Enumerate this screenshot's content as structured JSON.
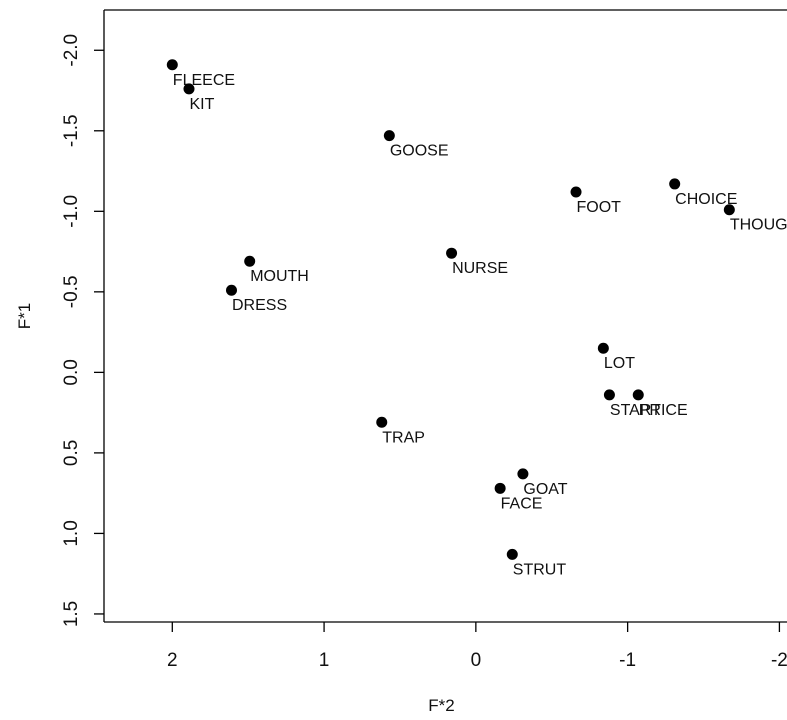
{
  "chart_data": {
    "type": "scatter",
    "title": "",
    "xlabel": "F*2",
    "ylabel": "F*1",
    "xlim": [
      2.45,
      -2.05
    ],
    "ylim": [
      -2.25,
      1.55
    ],
    "x_reversed": true,
    "y_reversed": true,
    "x_ticks": [
      2,
      1,
      0,
      -1,
      -2
    ],
    "x_tick_labels": [
      "2",
      "1",
      "0",
      "-1",
      "-2"
    ],
    "y_ticks": [
      -2.0,
      -1.5,
      -1.0,
      -0.5,
      0.0,
      0.5,
      1.0,
      1.5
    ],
    "y_tick_labels": [
      "-2.0",
      "-1.5",
      "-1.0",
      "-0.5",
      "0.0",
      "0.5",
      "1.0",
      "1.5"
    ],
    "grid": false,
    "legend": "none",
    "point_color": "#000000",
    "points": [
      {
        "label": "FLEECE",
        "x": 2.0,
        "y": -1.91
      },
      {
        "label": "KIT",
        "x": 1.89,
        "y": -1.76
      },
      {
        "label": "GOOSE",
        "x": 0.57,
        "y": -1.47
      },
      {
        "label": "FOOT",
        "x": -0.66,
        "y": -1.12
      },
      {
        "label": "CHOICE",
        "x": -1.31,
        "y": -1.17
      },
      {
        "label": "THOUG",
        "x": -1.67,
        "y": -1.01
      },
      {
        "label": "MOUTH",
        "x": 1.49,
        "y": -0.69
      },
      {
        "label": "DRESS",
        "x": 1.61,
        "y": -0.51
      },
      {
        "label": "NURSE",
        "x": 0.16,
        "y": -0.74
      },
      {
        "label": "LOT",
        "x": -0.84,
        "y": -0.15
      },
      {
        "label": "START",
        "x": -0.88,
        "y": 0.14
      },
      {
        "label": "PRICE",
        "x": -1.07,
        "y": 0.14
      },
      {
        "label": "TRAP",
        "x": 0.62,
        "y": 0.31
      },
      {
        "label": "GOAT",
        "x": -0.31,
        "y": 0.63
      },
      {
        "label": "FACE",
        "x": -0.16,
        "y": 0.72
      },
      {
        "label": "STRUT",
        "x": -0.24,
        "y": 1.13
      }
    ]
  }
}
